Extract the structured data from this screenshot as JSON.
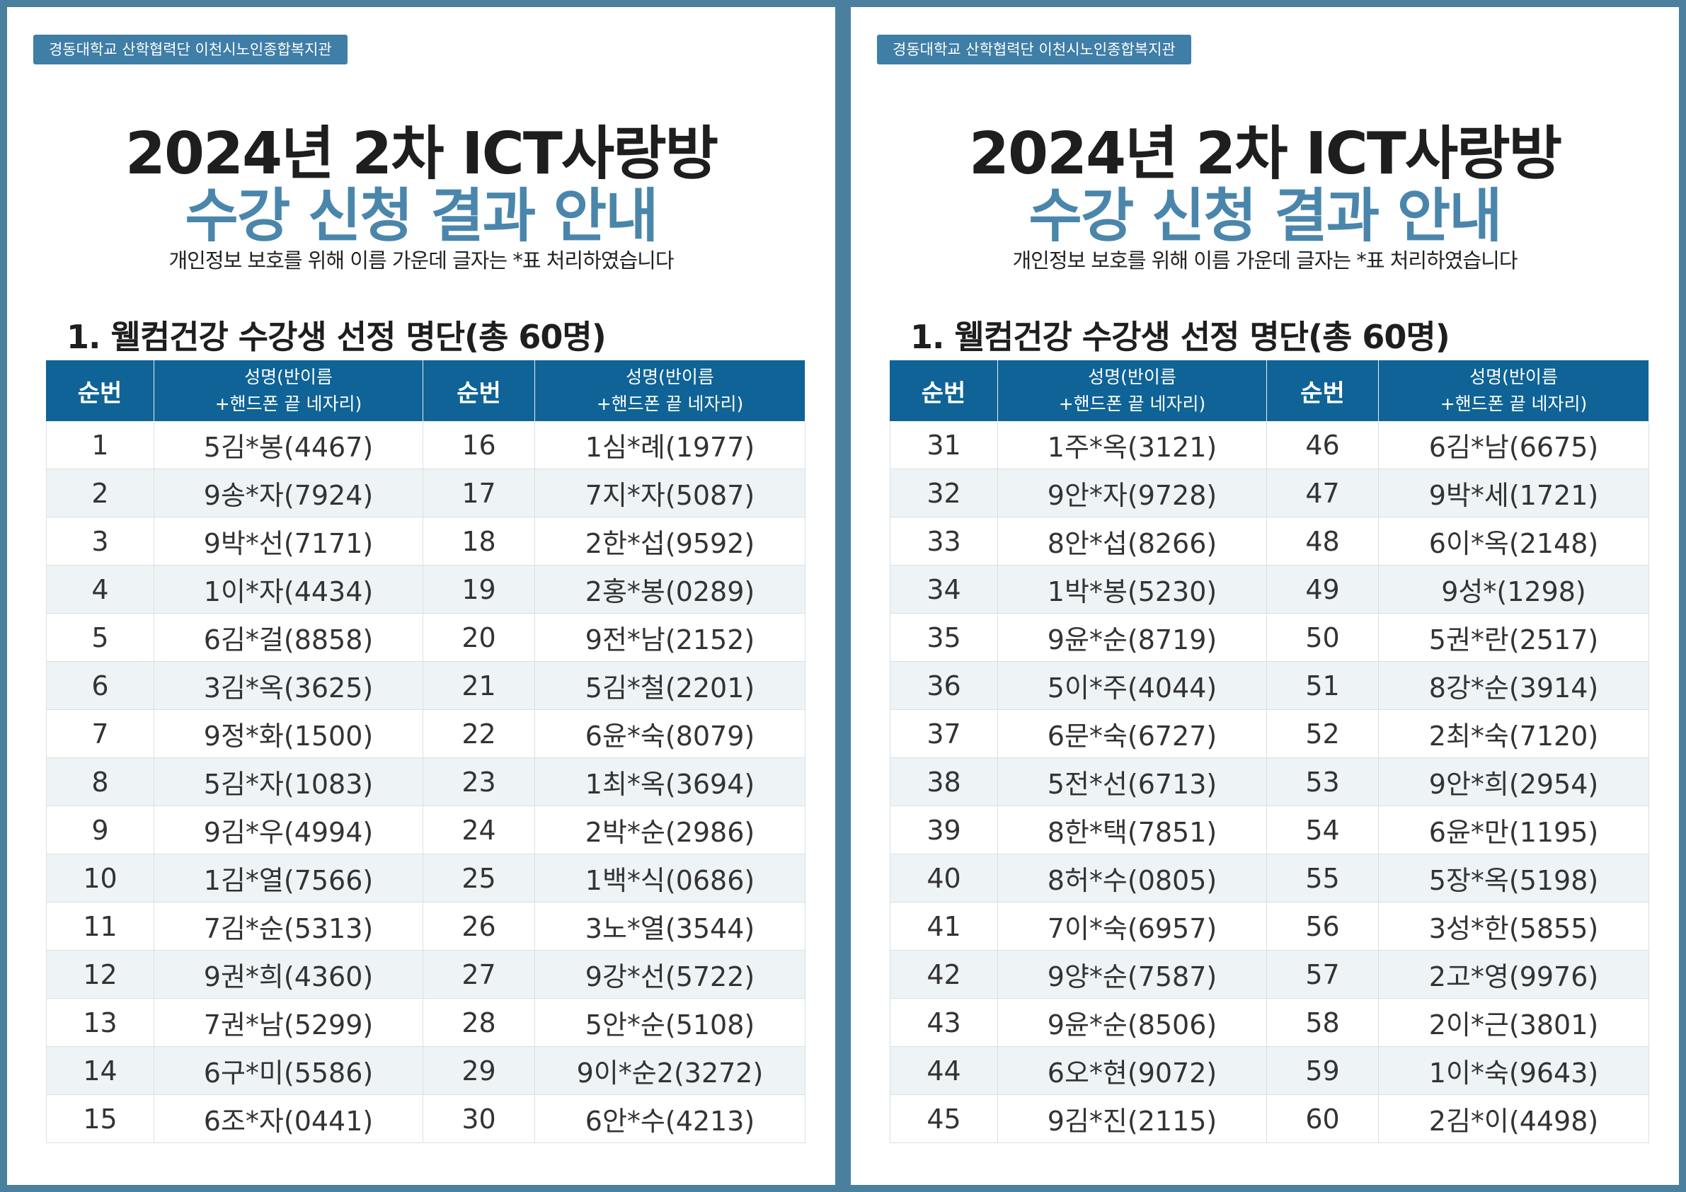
{
  "pages": [
    {
      "badge": "경동대학교 산학협력단 이천시노인종합복지관",
      "title_line1": "2024년 2차 ICT사랑방",
      "title_line2": "수강 신청 결과 안내",
      "note": "개인정보 보호를 위해 이름 가운데 글자는 *표 처리하였습니다",
      "section": "1. 웰컴건강 수강생 선정 명단(총 60명)",
      "headers": [
        [
          "순번"
        ],
        [
          "성명(반이름",
          "+핸드폰 끝 네자리)"
        ],
        [
          "순번"
        ],
        [
          "성명(반이름",
          "+핸드폰 끝 네자리)"
        ]
      ],
      "rows": [
        [
          "1",
          "5김*봉(4467)",
          "16",
          "1심*례(1977)"
        ],
        [
          "2",
          "9송*자(7924)",
          "17",
          "7지*자(5087)"
        ],
        [
          "3",
          "9박*선(7171)",
          "18",
          "2한*섭(9592)"
        ],
        [
          "4",
          "1이*자(4434)",
          "19",
          "2홍*봉(0289)"
        ],
        [
          "5",
          "6김*걸(8858)",
          "20",
          "9전*남(2152)"
        ],
        [
          "6",
          "3김*옥(3625)",
          "21",
          "5김*철(2201)"
        ],
        [
          "7",
          "9정*화(1500)",
          "22",
          "6윤*숙(8079)"
        ],
        [
          "8",
          "5김*자(1083)",
          "23",
          "1최*옥(3694)"
        ],
        [
          "9",
          "9김*우(4994)",
          "24",
          "2박*순(2986)"
        ],
        [
          "10",
          "1김*열(7566)",
          "25",
          "1백*식(0686)"
        ],
        [
          "11",
          "7김*순(5313)",
          "26",
          "3노*열(3544)"
        ],
        [
          "12",
          "9권*희(4360)",
          "27",
          "9강*선(5722)"
        ],
        [
          "13",
          "7권*남(5299)",
          "28",
          "5안*순(5108)"
        ],
        [
          "14",
          "6구*미(5586)",
          "29",
          "9이*순2(3272)"
        ],
        [
          "15",
          "6조*자(0441)",
          "30",
          "6안*수(4213)"
        ]
      ]
    },
    {
      "badge": "경동대학교 산학협력단 이천시노인종합복지관",
      "title_line1": "2024년 2차 ICT사랑방",
      "title_line2": "수강 신청 결과 안내",
      "note": "개인정보 보호를 위해 이름 가운데 글자는 *표 처리하였습니다",
      "section": "1. 웰컴건강 수강생 선정 명단(총 60명)",
      "headers": [
        [
          "순번"
        ],
        [
          "성명(반이름",
          "+핸드폰 끝 네자리)"
        ],
        [
          "순번"
        ],
        [
          "성명(반이름",
          "+핸드폰 끝 네자리)"
        ]
      ],
      "rows": [
        [
          "31",
          "1주*옥(3121)",
          "46",
          "6김*남(6675)"
        ],
        [
          "32",
          "9안*자(9728)",
          "47",
          "9박*세(1721)"
        ],
        [
          "33",
          "8안*섭(8266)",
          "48",
          "6이*옥(2148)"
        ],
        [
          "34",
          "1박*봉(5230)",
          "49",
          "9성*(1298)"
        ],
        [
          "35",
          "9윤*순(8719)",
          "50",
          "5권*란(2517)"
        ],
        [
          "36",
          "5이*주(4044)",
          "51",
          "8강*순(3914)"
        ],
        [
          "37",
          "6문*숙(6727)",
          "52",
          "2최*숙(7120)"
        ],
        [
          "38",
          "5전*선(6713)",
          "53",
          "9안*희(2954)"
        ],
        [
          "39",
          "8한*택(7851)",
          "54",
          "6윤*만(1195)"
        ],
        [
          "40",
          "8허*수(0805)",
          "55",
          "5장*옥(5198)"
        ],
        [
          "41",
          "7이*숙(6957)",
          "56",
          "3성*한(5855)"
        ],
        [
          "42",
          "9양*순(7587)",
          "57",
          "2고*영(9976)"
        ],
        [
          "43",
          "9윤*순(8506)",
          "58",
          "2이*근(3801)"
        ],
        [
          "44",
          "6오*현(9072)",
          "59",
          "1이*숙(9643)"
        ],
        [
          "45",
          "9김*진(2115)",
          "60",
          "2김*이(4498)"
        ]
      ]
    }
  ]
}
